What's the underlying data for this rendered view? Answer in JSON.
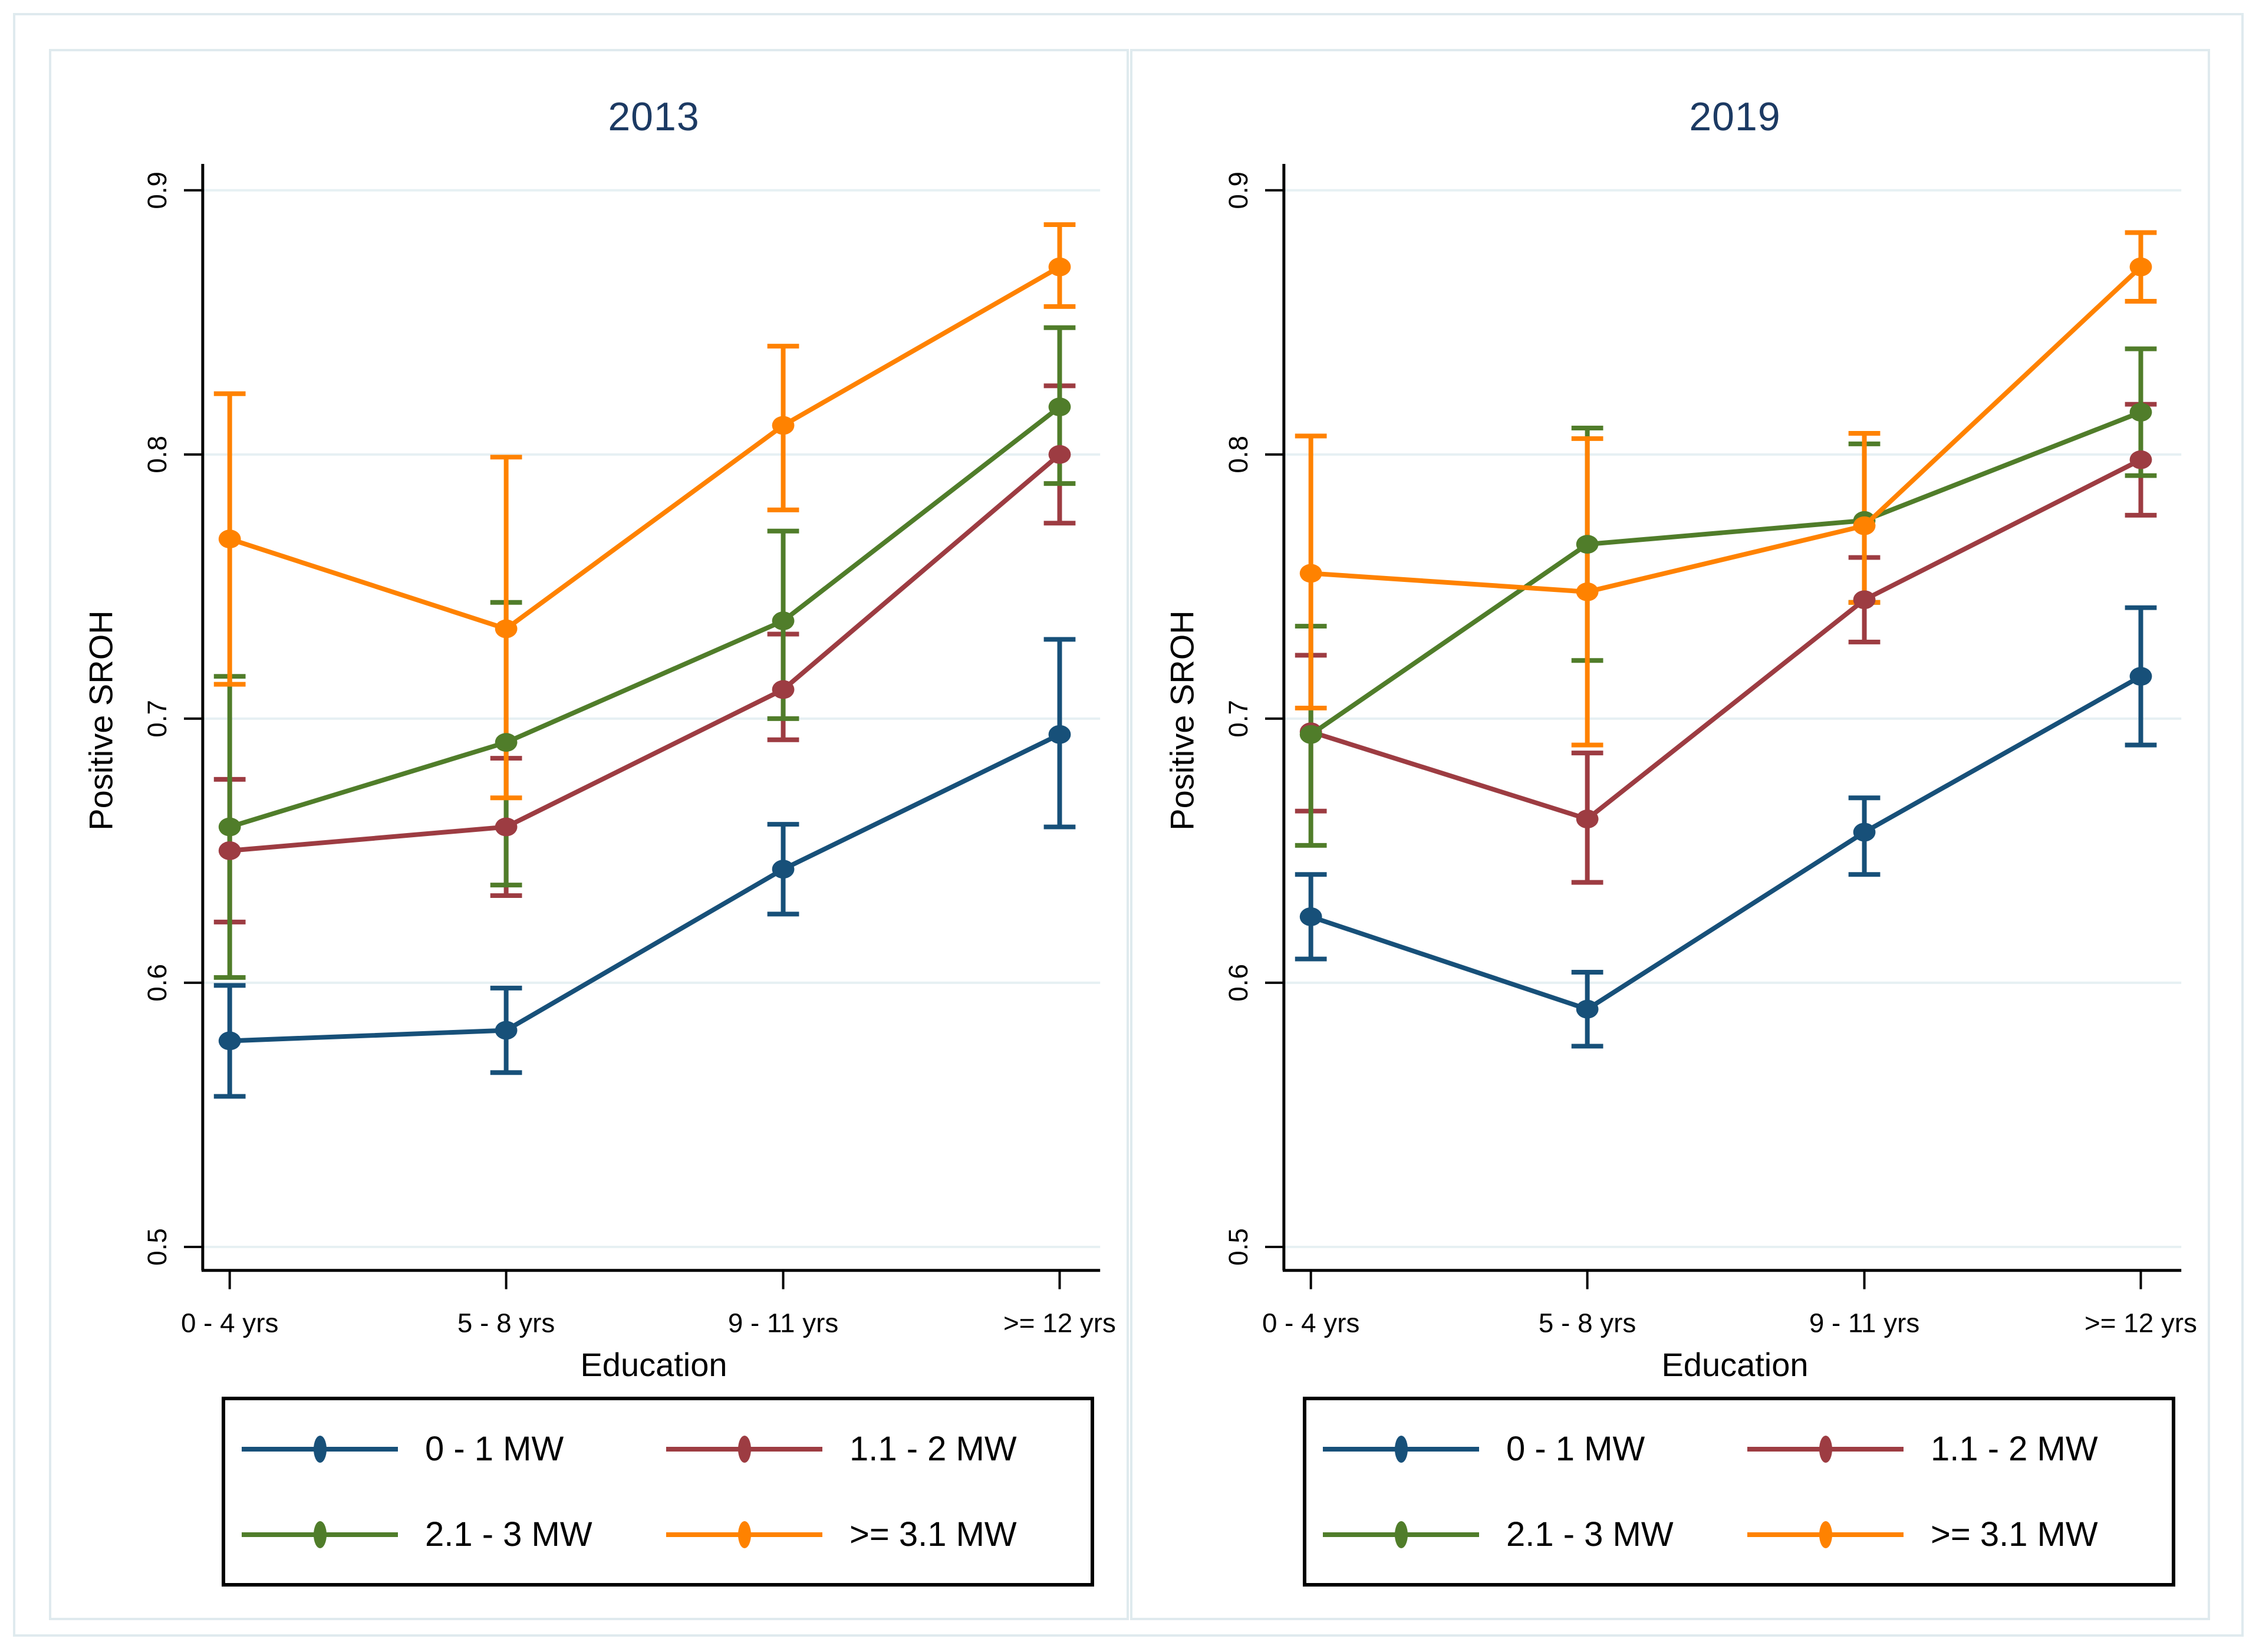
{
  "figure": {
    "background": "#ffffff",
    "frame_color": "#dfeaee",
    "gridline_color": "#e6f0f3",
    "axis_color": "#000000",
    "title_color": "#1c3a63"
  },
  "chart_data": [
    {
      "type": "line",
      "title": "2013",
      "categories": [
        "0 - 4 yrs",
        "5 - 8 yrs",
        "9 - 11 yrs",
        ">= 12 yrs"
      ],
      "xlabel": "Education",
      "ylabel": "Positive SROH",
      "ylim": [
        0.5,
        0.9
      ],
      "yticks": [
        0.9,
        0.8,
        0.7,
        0.6,
        0.5
      ],
      "grid": true,
      "legend_position": "bottom",
      "series": [
        {
          "name": "0 - 1 MW",
          "color": "#175079",
          "values": [
            0.578,
            0.582,
            0.643,
            0.694
          ],
          "ci_low": [
            0.557,
            0.566,
            0.626,
            0.659
          ],
          "ci_high": [
            0.599,
            0.598,
            0.66,
            0.73
          ]
        },
        {
          "name": "1.1 - 2 MW",
          "color": "#9d3c42",
          "values": [
            0.65,
            0.659,
            0.711,
            0.8
          ],
          "ci_low": [
            0.623,
            0.633,
            0.692,
            0.774
          ],
          "ci_high": [
            0.677,
            0.685,
            0.732,
            0.826
          ]
        },
        {
          "name": "2.1 - 3 MW",
          "color": "#507d2a",
          "values": [
            0.659,
            0.691,
            0.737,
            0.818
          ],
          "ci_low": [
            0.602,
            0.637,
            0.7,
            0.789
          ],
          "ci_high": [
            0.716,
            0.744,
            0.771,
            0.848
          ]
        },
        {
          "name": ">= 3.1 MW",
          "color": "#ff8200",
          "values": [
            0.768,
            0.734,
            0.811,
            0.871
          ],
          "ci_low": [
            0.713,
            0.67,
            0.779,
            0.856
          ],
          "ci_high": [
            0.823,
            0.799,
            0.841,
            0.887
          ]
        }
      ]
    },
    {
      "type": "line",
      "title": "2019",
      "categories": [
        "0 - 4 yrs",
        "5 - 8 yrs",
        "9 - 11 yrs",
        ">= 12 yrs"
      ],
      "xlabel": "Education",
      "ylabel": "Positive SROH",
      "ylim": [
        0.5,
        0.9
      ],
      "yticks": [
        0.9,
        0.8,
        0.7,
        0.6,
        0.5
      ],
      "grid": true,
      "legend_position": "bottom",
      "series": [
        {
          "name": "0 - 1 MW",
          "color": "#175079",
          "values": [
            0.625,
            0.59,
            0.657,
            0.716
          ],
          "ci_low": [
            0.609,
            0.576,
            0.641,
            0.69
          ],
          "ci_high": [
            0.641,
            0.604,
            0.67,
            0.742
          ]
        },
        {
          "name": "1.1 - 2 MW",
          "color": "#9d3c42",
          "values": [
            0.695,
            0.662,
            0.745,
            0.798
          ],
          "ci_low": [
            0.665,
            0.638,
            0.729,
            0.777
          ],
          "ci_high": [
            0.724,
            0.687,
            0.761,
            0.819
          ]
        },
        {
          "name": "2.1 - 3 MW",
          "color": "#507d2a",
          "values": [
            0.694,
            0.766,
            0.775,
            0.816
          ],
          "ci_low": [
            0.652,
            0.722,
            0.744,
            0.792
          ],
          "ci_high": [
            0.735,
            0.81,
            0.804,
            0.84
          ]
        },
        {
          "name": ">= 3.1 MW",
          "color": "#ff8200",
          "values": [
            0.755,
            0.748,
            0.773,
            0.871
          ],
          "ci_low": [
            0.704,
            0.69,
            0.744,
            0.858
          ],
          "ci_high": [
            0.807,
            0.806,
            0.808,
            0.884
          ]
        }
      ]
    }
  ]
}
